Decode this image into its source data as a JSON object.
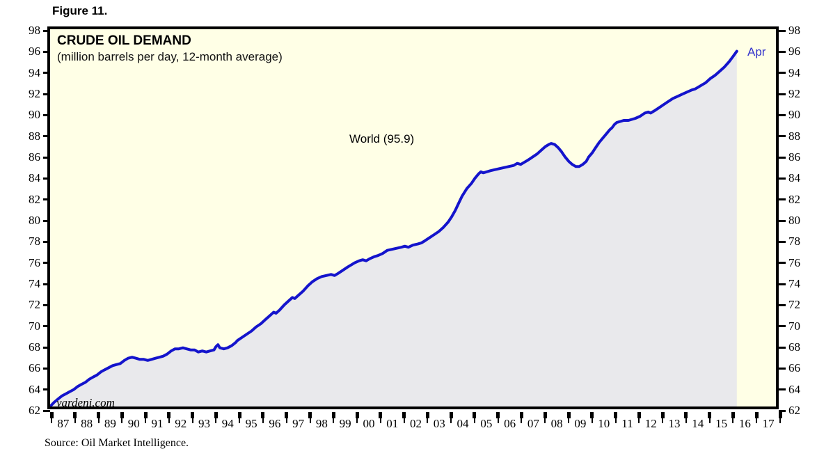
{
  "figure_label": "Figure 11.",
  "source_note": "Source: Oil Market Intelligence.",
  "chart_data": {
    "type": "area",
    "title": "CRUDE OIL DEMAND",
    "subtitle": "(million barrels per day, 12-month average)",
    "annotation_label": "World (95.9)",
    "end_point_label": "Apr",
    "watermark": "yardeni.com",
    "grid": false,
    "legend_position": "none",
    "xlim": [
      1987,
      2018
    ],
    "ylim": [
      62,
      98
    ],
    "y_ticks": [
      62,
      64,
      66,
      68,
      70,
      72,
      74,
      76,
      78,
      80,
      82,
      84,
      86,
      88,
      90,
      92,
      94,
      96,
      98
    ],
    "x_slot_labels": [
      "87",
      "88",
      "89",
      "90",
      "91",
      "92",
      "93",
      "94",
      "95",
      "96",
      "97",
      "98",
      "99",
      "00",
      "01",
      "02",
      "03",
      "04",
      "05",
      "06",
      "07",
      "08",
      "09",
      "10",
      "11",
      "12",
      "13",
      "14",
      "15",
      "16",
      "17"
    ],
    "colors": {
      "plot_background": "#FFFFE6",
      "area_fill": "#E9E9EC",
      "line": "#1414CC",
      "end_label_text": "#3333CC",
      "frame": "#000000",
      "text": "#000000"
    },
    "series": [
      {
        "name": "World",
        "latest": {
          "label": "Apr",
          "value": 95.9
        },
        "points": [
          [
            1987.0,
            62.0
          ],
          [
            1987.17,
            62.4
          ],
          [
            1987.33,
            62.7
          ],
          [
            1987.5,
            63.0
          ],
          [
            1987.67,
            63.2
          ],
          [
            1987.83,
            63.4
          ],
          [
            1988.0,
            63.6
          ],
          [
            1988.17,
            63.9
          ],
          [
            1988.33,
            64.1
          ],
          [
            1988.5,
            64.3
          ],
          [
            1988.67,
            64.6
          ],
          [
            1988.83,
            64.8
          ],
          [
            1989.0,
            65.0
          ],
          [
            1989.17,
            65.3
          ],
          [
            1989.33,
            65.5
          ],
          [
            1989.5,
            65.7
          ],
          [
            1989.67,
            65.9
          ],
          [
            1989.83,
            66.0
          ],
          [
            1990.0,
            66.1
          ],
          [
            1990.17,
            66.4
          ],
          [
            1990.33,
            66.6
          ],
          [
            1990.5,
            66.7
          ],
          [
            1990.67,
            66.6
          ],
          [
            1990.83,
            66.5
          ],
          [
            1991.0,
            66.5
          ],
          [
            1991.17,
            66.4
          ],
          [
            1991.33,
            66.5
          ],
          [
            1991.5,
            66.6
          ],
          [
            1991.67,
            66.7
          ],
          [
            1991.83,
            66.8
          ],
          [
            1992.0,
            67.0
          ],
          [
            1992.17,
            67.3
          ],
          [
            1992.33,
            67.5
          ],
          [
            1992.5,
            67.5
          ],
          [
            1992.67,
            67.6
          ],
          [
            1992.83,
            67.5
          ],
          [
            1993.0,
            67.4
          ],
          [
            1993.17,
            67.4
          ],
          [
            1993.33,
            67.2
          ],
          [
            1993.5,
            67.3
          ],
          [
            1993.67,
            67.2
          ],
          [
            1993.83,
            67.3
          ],
          [
            1994.0,
            67.4
          ],
          [
            1994.08,
            67.7
          ],
          [
            1994.17,
            67.9
          ],
          [
            1994.25,
            67.6
          ],
          [
            1994.42,
            67.5
          ],
          [
            1994.58,
            67.6
          ],
          [
            1994.75,
            67.8
          ],
          [
            1994.92,
            68.1
          ],
          [
            1995.0,
            68.3
          ],
          [
            1995.2,
            68.6
          ],
          [
            1995.4,
            68.9
          ],
          [
            1995.6,
            69.2
          ],
          [
            1995.8,
            69.6
          ],
          [
            1996.0,
            69.9
          ],
          [
            1996.2,
            70.3
          ],
          [
            1996.4,
            70.7
          ],
          [
            1996.55,
            71.0
          ],
          [
            1996.65,
            70.9
          ],
          [
            1996.8,
            71.2
          ],
          [
            1997.0,
            71.7
          ],
          [
            1997.2,
            72.1
          ],
          [
            1997.35,
            72.4
          ],
          [
            1997.45,
            72.3
          ],
          [
            1997.6,
            72.6
          ],
          [
            1997.8,
            73.0
          ],
          [
            1998.0,
            73.5
          ],
          [
            1998.2,
            73.9
          ],
          [
            1998.4,
            74.2
          ],
          [
            1998.6,
            74.4
          ],
          [
            1998.8,
            74.5
          ],
          [
            1999.0,
            74.6
          ],
          [
            1999.15,
            74.5
          ],
          [
            1999.3,
            74.7
          ],
          [
            1999.5,
            75.0
          ],
          [
            1999.7,
            75.3
          ],
          [
            1999.85,
            75.5
          ],
          [
            2000.0,
            75.7
          ],
          [
            2000.2,
            75.9
          ],
          [
            2000.35,
            76.0
          ],
          [
            2000.5,
            75.9
          ],
          [
            2000.65,
            76.1
          ],
          [
            2000.85,
            76.3
          ],
          [
            2001.0,
            76.4
          ],
          [
            2001.2,
            76.6
          ],
          [
            2001.4,
            76.9
          ],
          [
            2001.6,
            77.0
          ],
          [
            2001.8,
            77.1
          ],
          [
            2002.0,
            77.2
          ],
          [
            2002.15,
            77.3
          ],
          [
            2002.3,
            77.2
          ],
          [
            2002.5,
            77.4
          ],
          [
            2002.7,
            77.5
          ],
          [
            2002.85,
            77.6
          ],
          [
            2003.0,
            77.8
          ],
          [
            2003.2,
            78.1
          ],
          [
            2003.4,
            78.4
          ],
          [
            2003.6,
            78.7
          ],
          [
            2003.8,
            79.1
          ],
          [
            2004.0,
            79.6
          ],
          [
            2004.15,
            80.1
          ],
          [
            2004.3,
            80.7
          ],
          [
            2004.45,
            81.4
          ],
          [
            2004.6,
            82.1
          ],
          [
            2004.8,
            82.8
          ],
          [
            2005.0,
            83.3
          ],
          [
            2005.15,
            83.8
          ],
          [
            2005.3,
            84.2
          ],
          [
            2005.4,
            84.4
          ],
          [
            2005.5,
            84.3
          ],
          [
            2005.65,
            84.4
          ],
          [
            2005.8,
            84.5
          ],
          [
            2006.0,
            84.6
          ],
          [
            2006.2,
            84.7
          ],
          [
            2006.4,
            84.8
          ],
          [
            2006.6,
            84.9
          ],
          [
            2006.8,
            85.0
          ],
          [
            2006.95,
            85.2
          ],
          [
            2007.1,
            85.1
          ],
          [
            2007.25,
            85.3
          ],
          [
            2007.4,
            85.5
          ],
          [
            2007.6,
            85.8
          ],
          [
            2007.8,
            86.1
          ],
          [
            2008.0,
            86.5
          ],
          [
            2008.15,
            86.8
          ],
          [
            2008.3,
            87.0
          ],
          [
            2008.4,
            87.1
          ],
          [
            2008.55,
            87.0
          ],
          [
            2008.7,
            86.7
          ],
          [
            2008.85,
            86.3
          ],
          [
            2009.0,
            85.8
          ],
          [
            2009.15,
            85.4
          ],
          [
            2009.3,
            85.1
          ],
          [
            2009.45,
            84.9
          ],
          [
            2009.6,
            84.9
          ],
          [
            2009.75,
            85.1
          ],
          [
            2009.9,
            85.4
          ],
          [
            2010.0,
            85.8
          ],
          [
            2010.15,
            86.2
          ],
          [
            2010.3,
            86.7
          ],
          [
            2010.45,
            87.2
          ],
          [
            2010.6,
            87.6
          ],
          [
            2010.75,
            88.0
          ],
          [
            2010.9,
            88.4
          ],
          [
            2011.0,
            88.6
          ],
          [
            2011.1,
            88.9
          ],
          [
            2011.2,
            89.1
          ],
          [
            2011.35,
            89.2
          ],
          [
            2011.5,
            89.3
          ],
          [
            2011.7,
            89.3
          ],
          [
            2011.85,
            89.4
          ],
          [
            2012.0,
            89.5
          ],
          [
            2012.2,
            89.7
          ],
          [
            2012.4,
            90.0
          ],
          [
            2012.55,
            90.1
          ],
          [
            2012.65,
            90.0
          ],
          [
            2012.8,
            90.2
          ],
          [
            2013.0,
            90.5
          ],
          [
            2013.2,
            90.8
          ],
          [
            2013.4,
            91.1
          ],
          [
            2013.6,
            91.4
          ],
          [
            2013.8,
            91.6
          ],
          [
            2014.0,
            91.8
          ],
          [
            2014.2,
            92.0
          ],
          [
            2014.4,
            92.2
          ],
          [
            2014.55,
            92.3
          ],
          [
            2014.7,
            92.5
          ],
          [
            2014.85,
            92.7
          ],
          [
            2015.0,
            92.9
          ],
          [
            2015.2,
            93.3
          ],
          [
            2015.4,
            93.6
          ],
          [
            2015.6,
            94.0
          ],
          [
            2015.8,
            94.4
          ],
          [
            2016.0,
            94.9
          ],
          [
            2016.17,
            95.4
          ],
          [
            2016.33,
            95.9
          ]
        ]
      }
    ]
  }
}
